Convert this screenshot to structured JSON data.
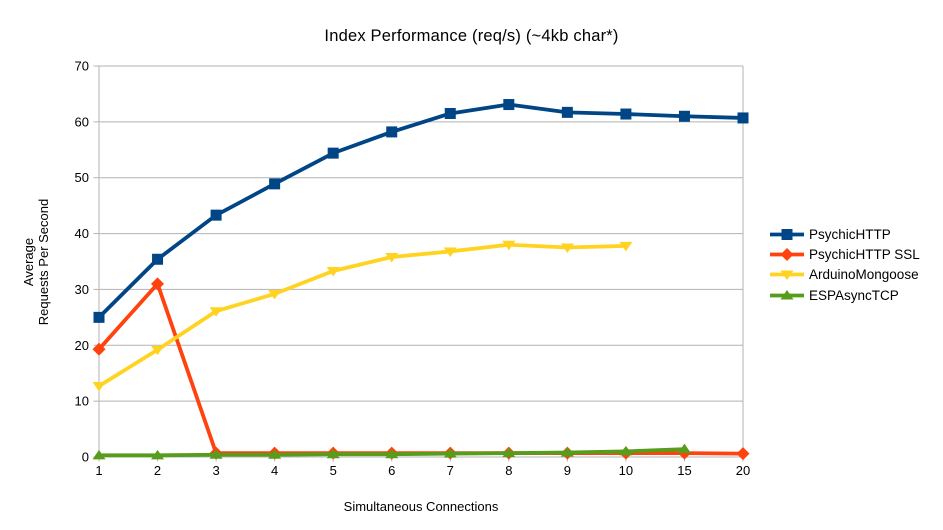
{
  "chart_data": {
    "type": "line",
    "title": "Index Performance (req/s) (~4kb char*)",
    "xlabel": "Simultaneous Connections",
    "ylabel_lines": [
      "Average",
      "Requests Per Second"
    ],
    "categories": [
      "1",
      "2",
      "3",
      "4",
      "5",
      "6",
      "7",
      "8",
      "9",
      "10",
      "15",
      "20"
    ],
    "ylim": [
      0,
      70
    ],
    "yticks": [
      0,
      10,
      20,
      30,
      40,
      50,
      60,
      70
    ],
    "grid": "horizontal",
    "legend_position": "right",
    "series": [
      {
        "name": "PsychicHTTP",
        "color": "#004586",
        "marker": "square",
        "values": [
          25.0,
          35.4,
          43.3,
          48.9,
          54.4,
          58.2,
          61.5,
          63.1,
          61.7,
          61.4,
          61.0,
          60.7
        ]
      },
      {
        "name": "PsychicHTTP SSL",
        "color": "#FF420E",
        "marker": "diamond",
        "values": [
          19.3,
          31.0,
          0.7,
          0.7,
          0.7,
          0.7,
          0.7,
          0.7,
          0.7,
          0.7,
          0.7,
          0.6
        ]
      },
      {
        "name": "ArduinoMongoose",
        "color": "#FFD320",
        "marker": "triangle-down",
        "values": [
          12.7,
          19.2,
          26.1,
          29.2,
          33.3,
          35.8,
          36.8,
          38.0,
          37.5,
          37.8,
          null,
          null
        ]
      },
      {
        "name": "ESPAsyncTCP",
        "color": "#579D1C",
        "marker": "triangle-up",
        "values": [
          0.3,
          0.3,
          0.4,
          0.4,
          0.5,
          0.5,
          0.6,
          0.7,
          0.8,
          1.0,
          1.4,
          null
        ]
      }
    ]
  },
  "style_colors": {
    "grid": "#b3b3b3",
    "axis": "#b3b3b3",
    "text": "#000000",
    "background": "#ffffff"
  }
}
